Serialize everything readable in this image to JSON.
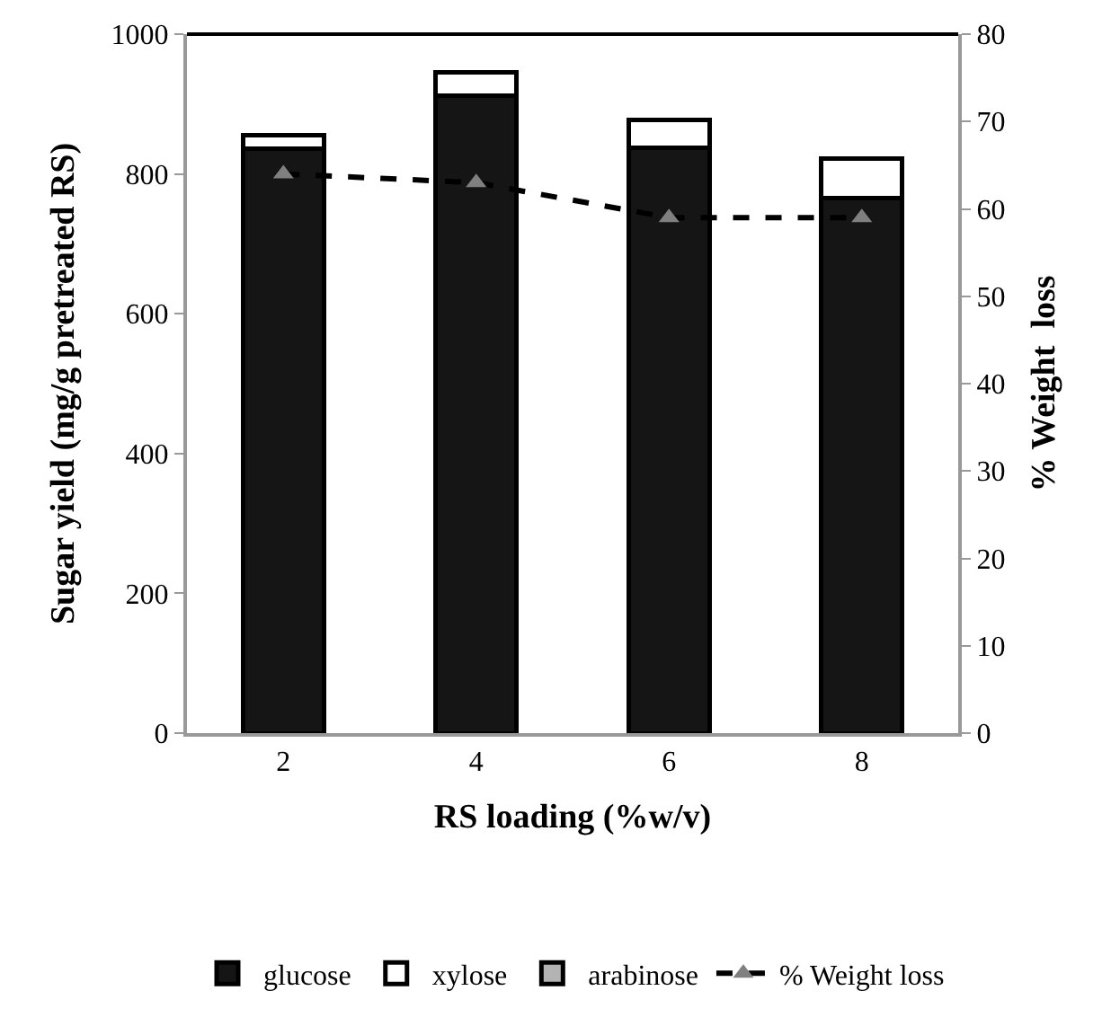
{
  "chart_data": {
    "type": "bar",
    "stacked": true,
    "categories": [
      "2",
      "4",
      "6",
      "8"
    ],
    "xlabel": "RS loading (%w/v)",
    "ylabel": "Sugar yield (mg/g pretreated RS)",
    "y2label": "% Weight  loss",
    "ylim": [
      0,
      1000
    ],
    "yticks": [
      0,
      200,
      400,
      600,
      800,
      1000
    ],
    "y2lim": [
      0,
      80
    ],
    "y2ticks": [
      0,
      10,
      20,
      30,
      40,
      50,
      60,
      70,
      80
    ],
    "legend": "bottom",
    "series": [
      {
        "name": "glucose",
        "color": "#151515",
        "values": [
          836,
          912,
          837,
          765
        ]
      },
      {
        "name": "xylose",
        "color": "#ffffff",
        "values": [
          19,
          34,
          40,
          57
        ]
      },
      {
        "name": "arabinose",
        "color": "#b3b3b3",
        "values": [
          null,
          null,
          null,
          null
        ]
      },
      {
        "name": "% Weight loss",
        "type": "line",
        "axis": "y2",
        "color": "#000000",
        "line_style": "dashed",
        "marker": "triangle",
        "colors": [
          "#808080",
          "#808080",
          "#808080",
          "#808080"
        ],
        "values": [
          64,
          63,
          59,
          59
        ]
      }
    ]
  }
}
